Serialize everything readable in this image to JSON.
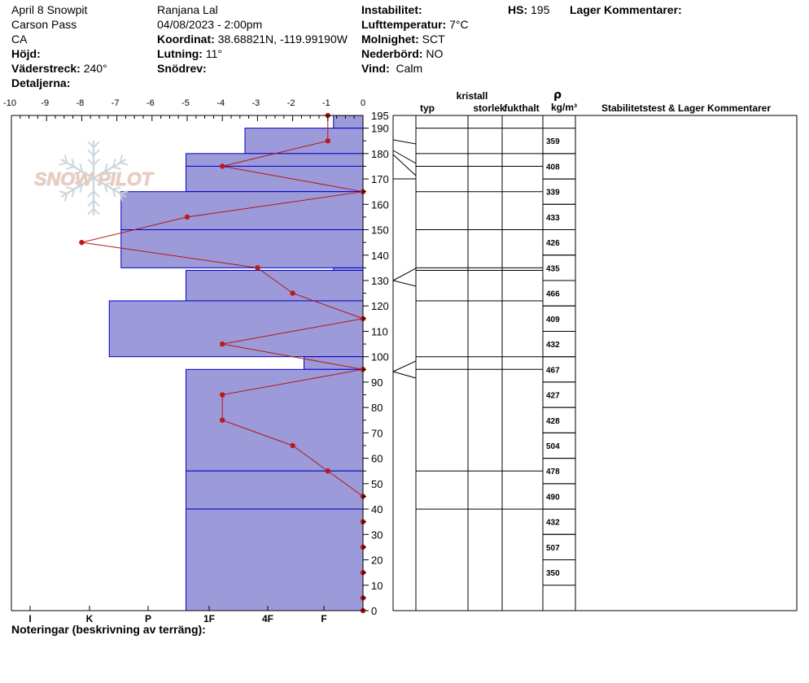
{
  "header": {
    "pit_name": "April 8 Snowpit",
    "location": "Carson Pass",
    "state": "CA",
    "elevation_label": "Höjd:",
    "aspect_label": "Väderstreck:",
    "aspect_value": "240°",
    "details_label": "Detaljerna:",
    "observer": "Ranjana Lal",
    "datetime": "04/08/2023 - 2:00pm",
    "coord_label": "Koordinat:",
    "coord_value": "38.68821N, -119.99190W",
    "slope_label": "Lutning:",
    "slope_value": "11°",
    "wind_loading_label": "Snödrev:",
    "instability_label": "Instabilitet:",
    "air_temp_label": "Lufttemperatur:",
    "air_temp_value": "7°C",
    "sky_label": "Molnighet:",
    "sky_value": "SCT",
    "precip_label": "Nederbörd:",
    "precip_value": "NO",
    "wind_label": "Vind:",
    "wind_value": "Calm",
    "hs_label": "HS:",
    "hs_value": "195",
    "layer_comments_label": "Lager Kommentarer:"
  },
  "logo": {
    "text": "SNOW PILOT"
  },
  "footer": {
    "notes_label": "Noteringar (beskrivning av terräng):"
  },
  "table": {
    "crystal_label": "kristall",
    "type_label": "typ",
    "size_label": "storlek",
    "moisture_label": "fukthalt",
    "density_symbol": "ρ",
    "density_unit": "kg/m³",
    "comments_label": "Stabilitetstest & Lager Kommentarer"
  },
  "colors": {
    "hardness_fill": "#9c9ad8",
    "hardness_stroke": "#0000cc",
    "temp_line": "#b01818",
    "temp_point": "#c01818",
    "logo_text": "#f5c7b0",
    "logo_flake": "#c9d2da"
  },
  "chart_data": {
    "type": "snow-profile",
    "height_axis": {
      "ylim": [
        0,
        195
      ],
      "ticks": [
        0,
        10,
        20,
        30,
        40,
        50,
        60,
        70,
        80,
        90,
        100,
        110,
        120,
        130,
        140,
        150,
        160,
        170,
        180,
        190,
        195
      ]
    },
    "temperature_axis": {
      "xlim": [
        -10,
        0
      ],
      "ticks": [
        -10,
        -9,
        -8,
        -7,
        -6,
        -5,
        -4,
        -3,
        -2,
        -1,
        0
      ]
    },
    "hardness_axis": {
      "ticks": [
        "I",
        "K",
        "P",
        "1F",
        "4F",
        "F"
      ]
    },
    "hardness_layers": [
      {
        "top": 195,
        "bottom": 190,
        "hardness": "F-"
      },
      {
        "top": 190,
        "bottom": 180,
        "hardness": "4F"
      },
      {
        "top": 180,
        "bottom": 175,
        "hardness": "1F"
      },
      {
        "top": 175,
        "bottom": 165,
        "hardness": "1F"
      },
      {
        "top": 165,
        "bottom": 150,
        "hardness": "P+"
      },
      {
        "top": 150,
        "bottom": 135,
        "hardness": "P+"
      },
      {
        "top": 135,
        "bottom": 134,
        "hardness": "F-"
      },
      {
        "top": 134,
        "bottom": 122,
        "hardness": "1F"
      },
      {
        "top": 122,
        "bottom": 100,
        "hardness": "K"
      },
      {
        "top": 100,
        "bottom": 95,
        "hardness": "F"
      },
      {
        "top": 95,
        "bottom": 55,
        "hardness": "1F"
      },
      {
        "top": 55,
        "bottom": 40,
        "hardness": "1F"
      },
      {
        "top": 40,
        "bottom": 0,
        "hardness": "1F"
      }
    ],
    "temperature_profile": [
      {
        "depth": 195,
        "temp": -1
      },
      {
        "depth": 185,
        "temp": -1
      },
      {
        "depth": 175,
        "temp": -4
      },
      {
        "depth": 165,
        "temp": 0
      },
      {
        "depth": 155,
        "temp": -5
      },
      {
        "depth": 145,
        "temp": -8
      },
      {
        "depth": 135,
        "temp": -3
      },
      {
        "depth": 125,
        "temp": -2
      },
      {
        "depth": 115,
        "temp": 0
      },
      {
        "depth": 105,
        "temp": -4
      },
      {
        "depth": 95,
        "temp": 0
      },
      {
        "depth": 85,
        "temp": -4
      },
      {
        "depth": 75,
        "temp": -4
      },
      {
        "depth": 65,
        "temp": -2
      },
      {
        "depth": 55,
        "temp": -1
      },
      {
        "depth": 45,
        "temp": 0
      },
      {
        "depth": 35,
        "temp": 0
      },
      {
        "depth": 25,
        "temp": 0
      },
      {
        "depth": 15,
        "temp": 0
      },
      {
        "depth": 5,
        "temp": 0
      },
      {
        "depth": 0,
        "temp": 0
      }
    ],
    "layer_boundaries": [
      195,
      190,
      180,
      175,
      165,
      150,
      135,
      134,
      122,
      100,
      95,
      55,
      40
    ],
    "densities": [
      {
        "top": 190,
        "bottom": 180,
        "value": "359"
      },
      {
        "top": 180,
        "bottom": 170,
        "value": "408"
      },
      {
        "top": 170,
        "bottom": 160,
        "value": "339"
      },
      {
        "top": 160,
        "bottom": 150,
        "value": "433"
      },
      {
        "top": 150,
        "bottom": 140,
        "value": "426"
      },
      {
        "top": 140,
        "bottom": 130,
        "value": "435"
      },
      {
        "top": 130,
        "bottom": 120,
        "value": "466"
      },
      {
        "top": 120,
        "bottom": 110,
        "value": "409"
      },
      {
        "top": 110,
        "bottom": 100,
        "value": "432"
      },
      {
        "top": 100,
        "bottom": 90,
        "value": "467"
      },
      {
        "top": 90,
        "bottom": 80,
        "value": "427"
      },
      {
        "top": 80,
        "bottom": 70,
        "value": "428"
      },
      {
        "top": 70,
        "bottom": 60,
        "value": "504"
      },
      {
        "top": 60,
        "bottom": 50,
        "value": "478"
      },
      {
        "top": 50,
        "bottom": 40,
        "value": "490"
      },
      {
        "top": 40,
        "bottom": 30,
        "value": "432"
      },
      {
        "top": 30,
        "bottom": 20,
        "value": "507"
      },
      {
        "top": 20,
        "bottom": 10,
        "value": "350"
      }
    ]
  }
}
